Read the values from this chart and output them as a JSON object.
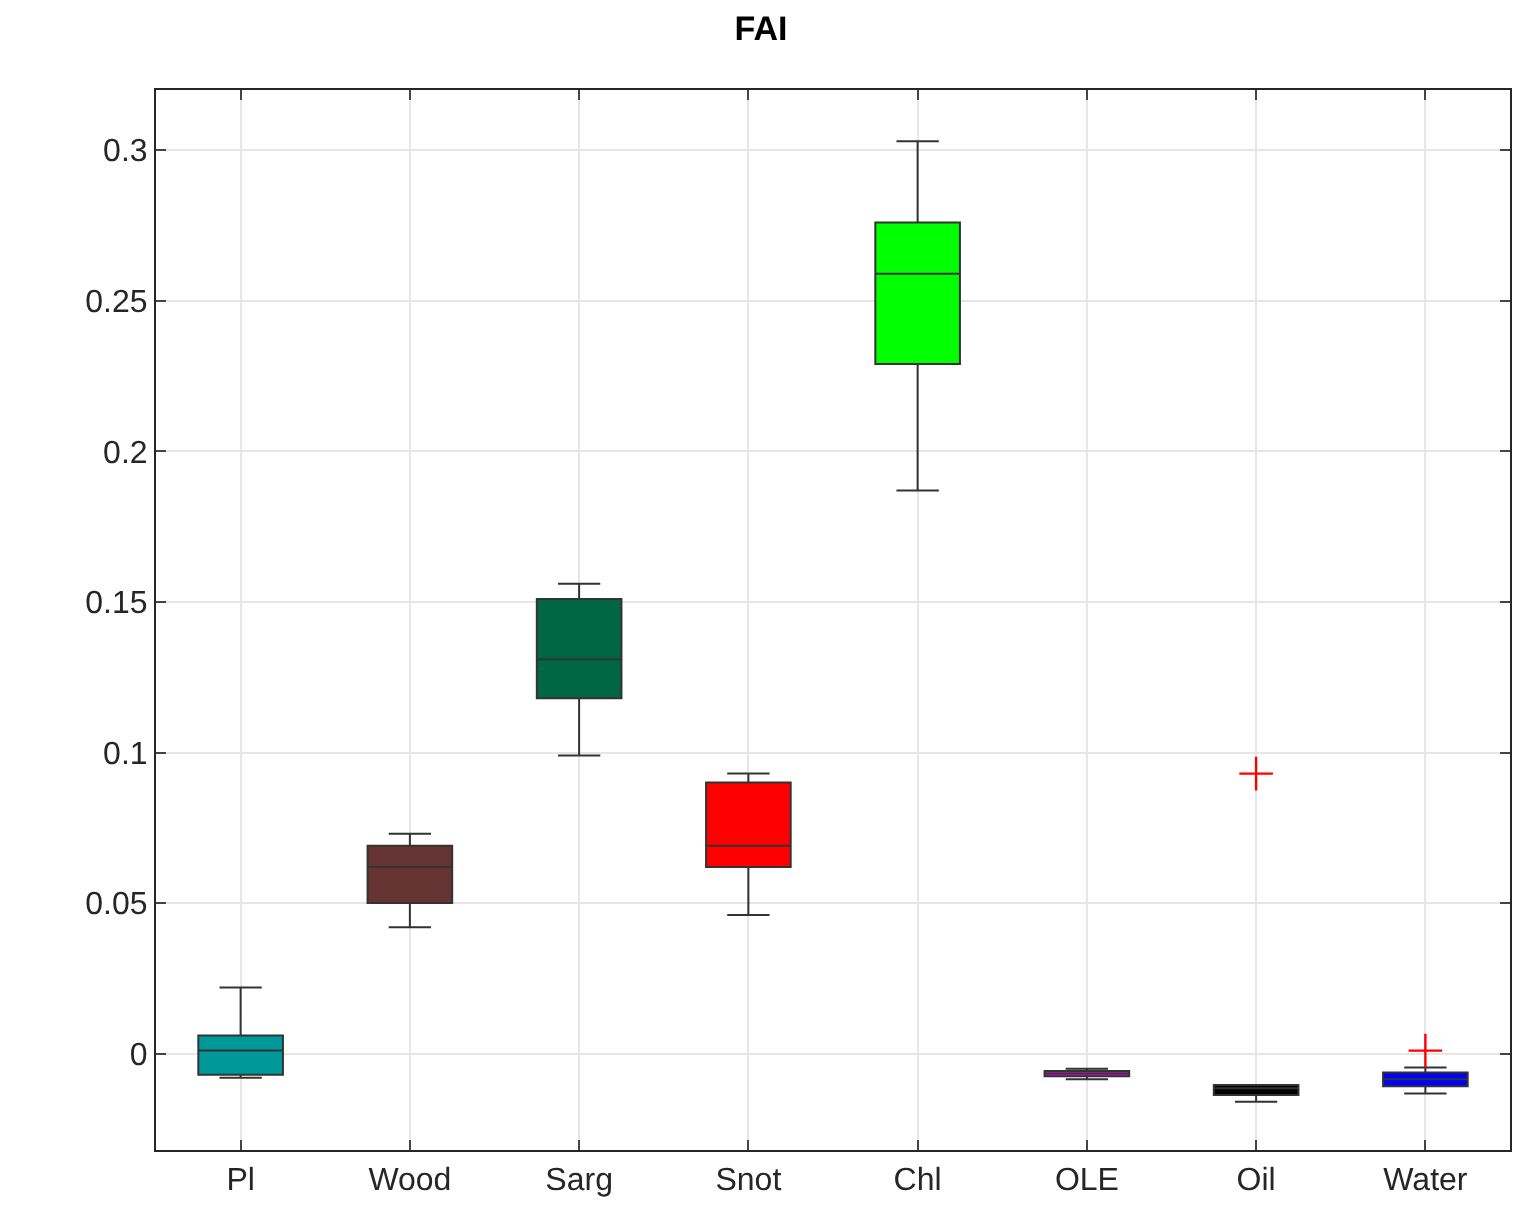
{
  "chart_data": {
    "type": "box",
    "title": "FAI",
    "categories": [
      "Pl",
      "Wood",
      "Sarg",
      "Snot",
      "Chl",
      "OLE",
      "Oil",
      "Water"
    ],
    "colors": [
      "#009999",
      "#663333",
      "#006644",
      "#ff0000",
      "#00ff00",
      "#ff00ff",
      "#000000",
      "#0000ff"
    ],
    "boxes": [
      {
        "low": -0.008,
        "q1": -0.007,
        "median": 0.001,
        "q3": 0.006,
        "high": 0.022
      },
      {
        "low": 0.042,
        "q1": 0.05,
        "median": 0.062,
        "q3": 0.069,
        "high": 0.073
      },
      {
        "low": 0.099,
        "q1": 0.118,
        "median": 0.131,
        "q3": 0.151,
        "high": 0.156
      },
      {
        "low": 0.046,
        "q1": 0.062,
        "median": 0.069,
        "q3": 0.09,
        "high": 0.093
      },
      {
        "low": 0.187,
        "q1": 0.229,
        "median": 0.259,
        "q3": 0.276,
        "high": 0.303
      },
      {
        "low": -0.0085,
        "q1": -0.0075,
        "median": -0.0066,
        "q3": -0.0058,
        "high": -0.005
      },
      {
        "low": -0.016,
        "q1": -0.0137,
        "median": -0.0115,
        "q3": -0.0104,
        "high": -0.0104,
        "outliers": [
          0.093
        ]
      },
      {
        "low": -0.0132,
        "q1": -0.0108,
        "median": -0.0085,
        "q3": -0.0063,
        "high": -0.0046,
        "outliers": [
          0.001
        ]
      }
    ],
    "ylim": [
      -0.032,
      0.32
    ],
    "yticks": [
      0,
      0.05,
      0.1,
      0.15,
      0.2,
      0.25,
      0.3
    ],
    "grid": true
  }
}
